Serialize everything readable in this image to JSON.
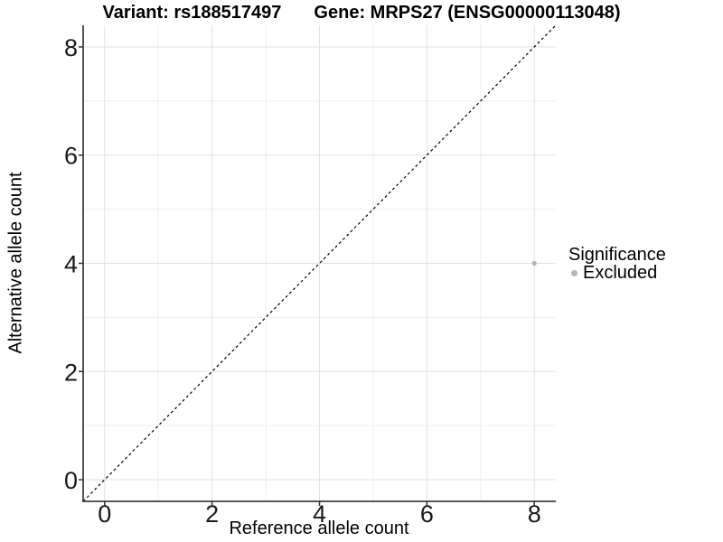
{
  "header": {
    "title_variant": "Variant: rs188517497",
    "title_gene": "Gene: MRPS27 (ENSG00000113048)"
  },
  "chart_data": {
    "type": "scatter",
    "title": "Variant: rs188517497   Gene: MRPS27 (ENSG00000113048)",
    "xlabel": "Reference allele count",
    "ylabel": "Alternative allele count",
    "xlim": [
      -0.4,
      8.4
    ],
    "ylim": [
      -0.4,
      8.4
    ],
    "x_ticks": [
      0,
      2,
      4,
      6,
      8
    ],
    "y_ticks": [
      0,
      2,
      4,
      6,
      8
    ],
    "x_minor_ticks": [
      1,
      3,
      5,
      7
    ],
    "y_minor_ticks": [
      1,
      3,
      5,
      7
    ],
    "grid": "on",
    "reference_line": {
      "kind": "identity y=x",
      "from": [
        -0.4,
        -0.4
      ],
      "to": [
        8.4,
        8.4
      ],
      "style": "dashed",
      "color": "#000000"
    },
    "series": [
      {
        "name": "Excluded",
        "marker": "circle",
        "color": "#b4b4b4",
        "points": [
          [
            8,
            4
          ]
        ]
      }
    ],
    "legend": {
      "title": "Significance",
      "position": "right",
      "entries": [
        {
          "label": "Excluded",
          "color": "#b4b4b4"
        }
      ]
    }
  },
  "style": {
    "background": "#ffffff",
    "grid_major_color": "#e2e2e2",
    "grid_minor_color": "#efefef",
    "axis_line_color": "#404040",
    "tick_color": "#333333",
    "tick_label_color": "#1a1a1a",
    "point_color": "#b4b4b4"
  }
}
